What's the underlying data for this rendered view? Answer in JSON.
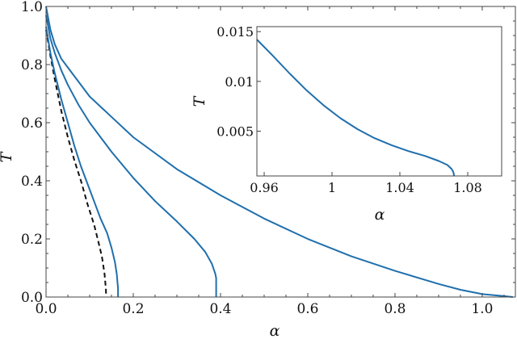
{
  "chart_data": [
    {
      "id": "main",
      "type": "line",
      "title": "",
      "xlabel": "α",
      "ylabel": "T",
      "xlim": [
        0.0,
        1.076
      ],
      "ylim": [
        0.0,
        1.0
      ],
      "xticks": [
        0.0,
        0.2,
        0.4,
        0.6,
        0.8,
        1.0
      ],
      "xtick_labels": [
        "0.0",
        "0.2",
        "0.4",
        "0.6",
        "0.8",
        "1.0"
      ],
      "yticks": [
        0.0,
        0.2,
        0.4,
        0.6,
        0.8,
        1.0
      ],
      "ytick_labels": [
        "0.0",
        "0.2",
        "0.4",
        "0.6",
        "0.8",
        "1.0"
      ],
      "grid": false,
      "legend": null,
      "series": [
        {
          "name": "dashed-black",
          "color": "#111111",
          "style": "dashed",
          "x": [
            0.0,
            0.01,
            0.02,
            0.035,
            0.05,
            0.065,
            0.08,
            0.095,
            0.11,
            0.12,
            0.128,
            0.134,
            0.137,
            0.138
          ],
          "y": [
            0.92,
            0.83,
            0.75,
            0.64,
            0.55,
            0.47,
            0.4,
            0.32,
            0.25,
            0.19,
            0.14,
            0.08,
            0.03,
            0.0
          ]
        },
        {
          "name": "blue-1",
          "color": "#1f6fad",
          "style": "solid",
          "x": [
            0.0,
            0.01,
            0.02,
            0.035,
            0.05,
            0.065,
            0.08,
            0.095,
            0.11,
            0.125,
            0.14,
            0.15,
            0.158,
            0.162,
            0.165,
            0.165
          ],
          "y": [
            0.93,
            0.84,
            0.77,
            0.68,
            0.6,
            0.52,
            0.45,
            0.39,
            0.33,
            0.27,
            0.22,
            0.17,
            0.12,
            0.08,
            0.03,
            0.0
          ]
        },
        {
          "name": "blue-2",
          "color": "#1f6fad",
          "style": "solid",
          "x": [
            0.0,
            0.01,
            0.02,
            0.035,
            0.05,
            0.075,
            0.1,
            0.15,
            0.2,
            0.25,
            0.3,
            0.34,
            0.365,
            0.38,
            0.388,
            0.39,
            0.39
          ],
          "y": [
            0.97,
            0.89,
            0.84,
            0.78,
            0.73,
            0.66,
            0.6,
            0.5,
            0.41,
            0.33,
            0.26,
            0.2,
            0.155,
            0.115,
            0.08,
            0.065,
            0.0
          ]
        },
        {
          "name": "blue-3",
          "color": "#1f6fad",
          "style": "solid",
          "x": [
            0.0,
            0.01,
            0.02,
            0.035,
            0.05,
            0.075,
            0.1,
            0.15,
            0.2,
            0.3,
            0.4,
            0.5,
            0.6,
            0.7,
            0.8,
            0.9,
            0.95,
            1.0,
            1.05,
            1.07
          ],
          "y": [
            1.0,
            0.92,
            0.87,
            0.82,
            0.79,
            0.74,
            0.69,
            0.62,
            0.55,
            0.44,
            0.35,
            0.27,
            0.2,
            0.14,
            0.09,
            0.045,
            0.025,
            0.01,
            0.003,
            0.0
          ]
        }
      ]
    },
    {
      "id": "inset",
      "type": "line",
      "title": "",
      "xlabel": "α",
      "ylabel": "T",
      "xlim": [
        0.9557,
        1.1
      ],
      "ylim": [
        0.0005,
        0.0155
      ],
      "xticks": [
        0.96,
        1.0,
        1.04,
        1.08
      ],
      "xtick_labels": [
        "0.96",
        "1",
        "1.04",
        "1.08"
      ],
      "yticks": [
        0.005,
        0.01,
        0.015
      ],
      "ytick_labels": [
        "0.005",
        "0.01",
        "0.015"
      ],
      "grid": false,
      "legend": null,
      "series": [
        {
          "name": "blue-3-zoom",
          "color": "#1f6fad",
          "style": "solid",
          "x": [
            0.9557,
            0.965,
            0.975,
            0.985,
            0.995,
            1.005,
            1.015,
            1.025,
            1.035,
            1.045,
            1.055,
            1.063,
            1.068,
            1.0705,
            1.0715,
            1.072
          ],
          "y": [
            0.0142,
            0.0126,
            0.0108,
            0.0091,
            0.0076,
            0.0063,
            0.0052,
            0.0043,
            0.0036,
            0.003,
            0.0025,
            0.002,
            0.0016,
            0.0012,
            0.0009,
            0.0005
          ]
        }
      ]
    }
  ],
  "axes": {
    "main": {
      "xlabel": "α",
      "ylabel": "T"
    },
    "inset": {
      "xlabel": "α",
      "ylabel": "T"
    }
  }
}
